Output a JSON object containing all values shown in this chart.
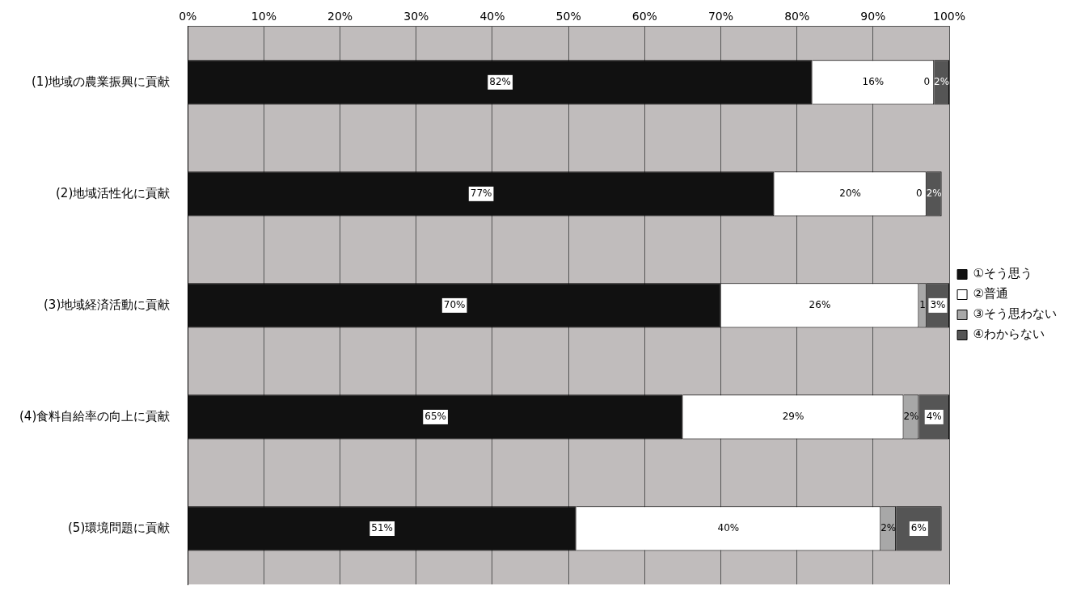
{
  "chart_data": {
    "type": "bar",
    "orientation": "horizontal",
    "stacked": true,
    "categories": [
      "(1)地域の農業振興に貢献",
      "(2)地域活性化に貢献",
      "(3)地域経済活動に貢献",
      "(4)食料自給率の向上に貢献",
      "(5)環境問題に貢献"
    ],
    "series": [
      {
        "name": "①そう思う",
        "color": "#111111",
        "values": [
          82,
          77,
          70,
          65,
          51
        ],
        "value_labels": [
          "82%",
          "77%",
          "70%",
          "65%",
          "51%"
        ]
      },
      {
        "name": "②普通",
        "color": "#ffffff",
        "values": [
          16,
          20,
          26,
          29,
          40
        ],
        "value_labels": [
          "16%",
          "20%",
          "26%",
          "29%",
          "40%"
        ]
      },
      {
        "name": "③そう思わない",
        "color": "#a8a8a8",
        "values": [
          0,
          0,
          1,
          2,
          2
        ],
        "value_labels": [
          "0",
          "0",
          "1",
          "2%",
          "2%"
        ]
      },
      {
        "name": "④わからない",
        "color": "#555555",
        "values": [
          2,
          2,
          3,
          4,
          6
        ],
        "value_labels": [
          "2%",
          "2%",
          "3%",
          "4%",
          "6%"
        ]
      }
    ],
    "xlim": [
      0,
      100
    ],
    "xticks": [
      {
        "value": 0,
        "label": "0%"
      },
      {
        "value": 10,
        "label": "10%"
      },
      {
        "value": 20,
        "label": "20%"
      },
      {
        "value": 30,
        "label": "30%"
      },
      {
        "value": 40,
        "label": "40%"
      },
      {
        "value": 50,
        "label": "50%"
      },
      {
        "value": 60,
        "label": "60%"
      },
      {
        "value": 70,
        "label": "70%"
      },
      {
        "value": 80,
        "label": "80%"
      },
      {
        "value": 90,
        "label": "90%"
      },
      {
        "value": 100,
        "label": "100%"
      }
    ],
    "grid": "x",
    "legend": "right"
  }
}
